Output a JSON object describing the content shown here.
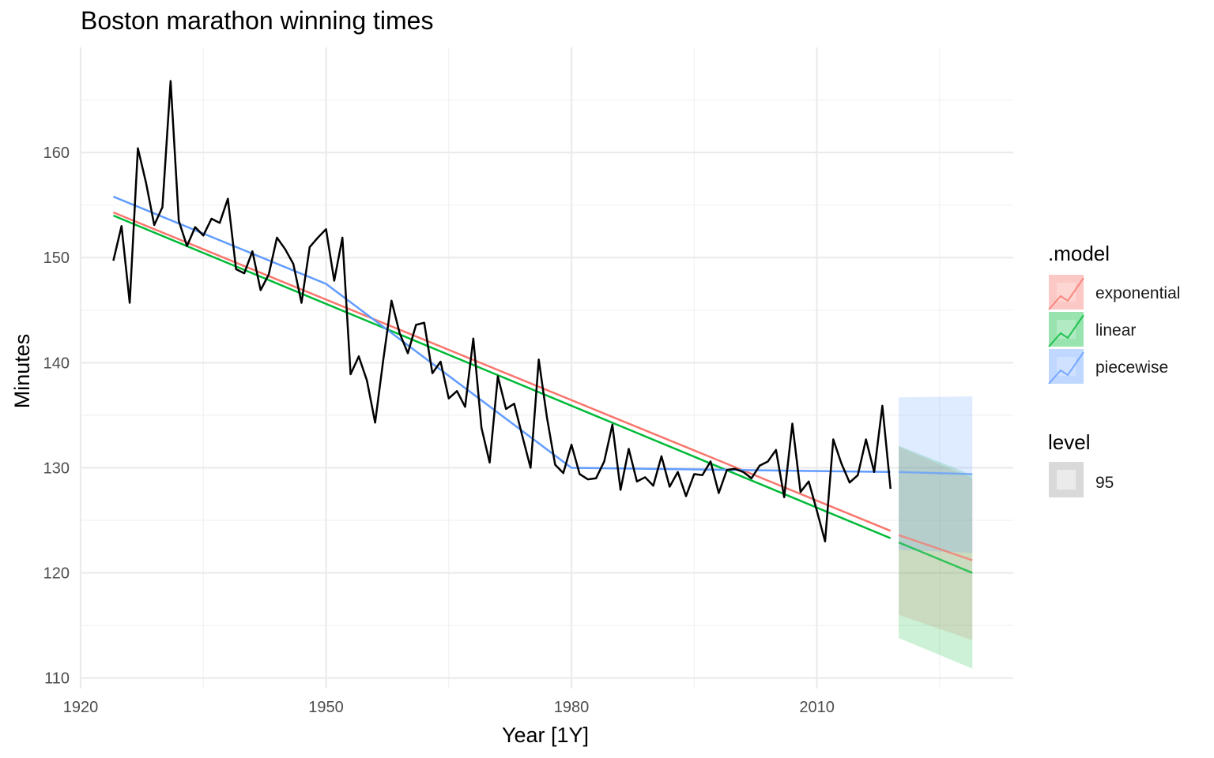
{
  "title": "Boston marathon winning times",
  "chart_data": {
    "type": "line",
    "title": "Boston marathon winning times",
    "xlabel": "Year [1Y]",
    "ylabel": "Minutes",
    "xlim": [
      1920,
      2034
    ],
    "ylim": [
      109,
      170
    ],
    "x_ticks": [
      1920,
      1950,
      1980,
      2010
    ],
    "y_ticks": [
      110,
      120,
      130,
      140,
      150,
      160
    ],
    "grid": true,
    "legend_position": "right",
    "observed": {
      "x": [
        1924,
        1925,
        1926,
        1927,
        1928,
        1929,
        1930,
        1931,
        1932,
        1933,
        1934,
        1935,
        1936,
        1937,
        1938,
        1939,
        1940,
        1941,
        1942,
        1943,
        1944,
        1945,
        1946,
        1947,
        1948,
        1949,
        1950,
        1951,
        1952,
        1953,
        1954,
        1955,
        1956,
        1957,
        1958,
        1959,
        1960,
        1961,
        1962,
        1963,
        1964,
        1965,
        1966,
        1967,
        1968,
        1969,
        1970,
        1971,
        1972,
        1973,
        1974,
        1975,
        1976,
        1977,
        1978,
        1979,
        1980,
        1981,
        1982,
        1983,
        1984,
        1985,
        1986,
        1987,
        1988,
        1989,
        1990,
        1991,
        1992,
        1993,
        1994,
        1995,
        1996,
        1997,
        1998,
        1999,
        2000,
        2001,
        2002,
        2003,
        2004,
        2005,
        2006,
        2007,
        2008,
        2009,
        2010,
        2011,
        2012,
        2013,
        2014,
        2015,
        2016,
        2017,
        2018,
        2019
      ],
      "y": [
        149.7,
        153.0,
        145.7,
        160.4,
        157.1,
        153.1,
        154.8,
        166.8,
        153.5,
        151.1,
        152.9,
        152.1,
        153.7,
        153.3,
        155.6,
        148.9,
        148.5,
        150.6,
        146.9,
        148.4,
        151.9,
        150.8,
        149.4,
        145.7,
        151.0,
        151.9,
        152.7,
        147.8,
        151.9,
        138.9,
        140.6,
        138.3,
        134.3,
        140.3,
        145.9,
        142.8,
        140.9,
        143.6,
        143.8,
        139.0,
        140.1,
        136.6,
        137.3,
        135.8,
        142.3,
        133.8,
        130.5,
        138.7,
        135.6,
        136.1,
        133.0,
        130.0,
        140.3,
        134.8,
        130.3,
        129.5,
        132.2,
        129.4,
        128.9,
        129.0,
        130.6,
        134.1,
        127.9,
        131.8,
        128.7,
        129.1,
        128.3,
        131.1,
        128.2,
        129.6,
        127.3,
        129.4,
        129.3,
        130.6,
        127.6,
        129.8,
        129.9,
        129.6,
        129.0,
        130.2,
        130.6,
        131.7,
        127.2,
        134.2,
        127.7,
        128.7,
        125.9,
        123.0,
        132.7,
        130.4,
        128.6,
        129.3,
        132.7,
        129.6,
        135.9,
        128.0
      ]
    },
    "series": [
      {
        "name": "exponential",
        "color": "#f8766d",
        "fitted": {
          "x": [
            1924,
            2019
          ],
          "y": [
            154.3,
            124.0
          ]
        },
        "forecast": {
          "x": [
            2020,
            2029
          ],
          "y": [
            123.6,
            121.2
          ]
        },
        "interval": {
          "lower": [
            116.0,
            113.6
          ],
          "upper": [
            132.0,
            129.0
          ]
        }
      },
      {
        "name": "linear",
        "color": "#00ba38",
        "fitted": {
          "x": [
            1924,
            2019
          ],
          "y": [
            154.0,
            123.3
          ]
        },
        "forecast": {
          "x": [
            2020,
            2029
          ],
          "y": [
            122.9,
            120.0
          ]
        },
        "interval": {
          "lower": [
            113.8,
            110.9
          ],
          "upper": [
            132.1,
            129.3
          ]
        }
      },
      {
        "name": "piecewise",
        "color": "#619cff",
        "fitted": {
          "x": [
            1924,
            1950,
            1980,
            2019
          ],
          "y": [
            155.8,
            147.5,
            130.0,
            129.6
          ]
        },
        "forecast": {
          "x": [
            2020,
            2029
          ],
          "y": [
            129.6,
            129.4
          ]
        },
        "interval": {
          "lower": [
            122.2,
            121.9
          ],
          "upper": [
            136.7,
            136.8
          ]
        }
      }
    ],
    "legend": {
      "model_title": ".model",
      "model_items": [
        "exponential",
        "linear",
        "piecewise"
      ],
      "level_title": "level",
      "level_items": [
        "95"
      ]
    }
  }
}
